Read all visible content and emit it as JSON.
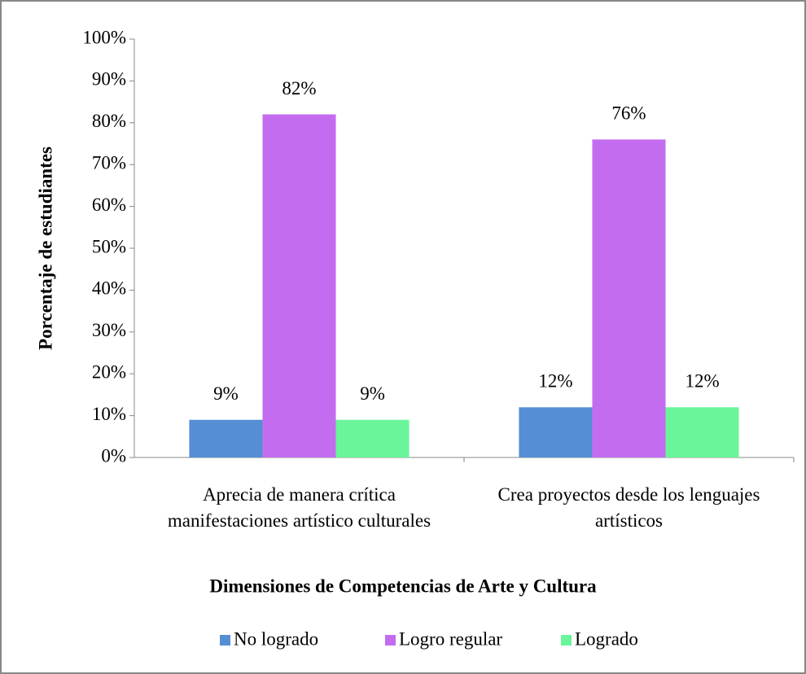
{
  "chart_data": {
    "type": "bar",
    "xlabel": "Dimensiones de Competencias de Arte y Cultura",
    "ylabel": "Porcentaje de estudiantes",
    "categories": [
      "Aprecia de manera crítica manifestaciones artístico culturales",
      "Crea proyectos desde los lenguajes artísticos"
    ],
    "series": [
      {
        "name": "No logrado",
        "color": "#558ed5",
        "values": [
          9,
          12
        ],
        "value_labels": [
          "9%",
          "12%"
        ]
      },
      {
        "name": "Logro regular",
        "color": "#c46cf0",
        "values": [
          82,
          76
        ],
        "value_labels": [
          "82%",
          "76%"
        ]
      },
      {
        "name": "Logrado",
        "color": "#6af59a",
        "values": [
          9,
          12
        ],
        "value_labels": [
          "9%",
          "12%"
        ]
      }
    ],
    "ylim": [
      0,
      100
    ],
    "yticks": [
      {
        "value": 0,
        "label": "0%"
      },
      {
        "value": 10,
        "label": "10%"
      },
      {
        "value": 20,
        "label": "20%"
      },
      {
        "value": 30,
        "label": "30%"
      },
      {
        "value": 40,
        "label": "40%"
      },
      {
        "value": 50,
        "label": "50%"
      },
      {
        "value": 60,
        "label": "60%"
      },
      {
        "value": 70,
        "label": "70%"
      },
      {
        "value": 80,
        "label": "80%"
      },
      {
        "value": 90,
        "label": "90%"
      },
      {
        "value": 100,
        "label": "100%"
      }
    ],
    "grid": false,
    "legend": "bottom"
  }
}
